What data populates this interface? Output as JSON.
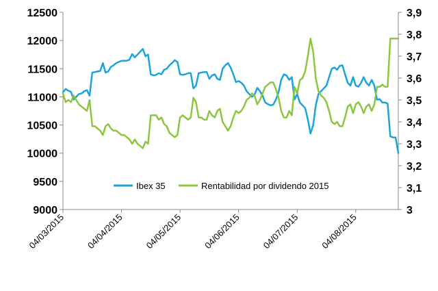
{
  "chart_data": {
    "type": "line",
    "title": "",
    "xlabel": "",
    "y_left": {
      "label": "",
      "min": 9000,
      "max": 12500,
      "step": 500,
      "ticks": [
        "12500",
        "12000",
        "11500",
        "11000",
        "10500",
        "10000",
        "9500",
        "9000"
      ]
    },
    "y_right": {
      "label": "",
      "min": 3.0,
      "max": 3.9,
      "step": 0.1,
      "ticks": [
        "3,9",
        "3,8",
        "3,7",
        "3,6",
        "3,5",
        "3,4",
        "3,3",
        "3,2",
        "3,1",
        "3"
      ]
    },
    "x_ticks": [
      "04/03/2015",
      "04/04/2015",
      "04/05/2015",
      "04/06/2015",
      "04/07/2015",
      "04/08/2015"
    ],
    "x_range_index": [
      0,
      126
    ],
    "x_tick_index": [
      0,
      22,
      44,
      66,
      88,
      110
    ],
    "grid": false,
    "legend": "bottom-center",
    "series": [
      {
        "name": "Ibex 35",
        "axis": "left",
        "color": "#1AA3DC",
        "values": [
          11080,
          11140,
          11110,
          11090,
          10950,
          11000,
          11050,
          11060,
          11100,
          11120,
          11020,
          11430,
          11440,
          11450,
          11460,
          11600,
          11430,
          11450,
          11530,
          11560,
          11600,
          11620,
          11640,
          11640,
          11640,
          11660,
          11760,
          11700,
          11750,
          11800,
          11850,
          11720,
          11750,
          11400,
          11380,
          11390,
          11420,
          11400,
          11480,
          11500,
          11560,
          11600,
          11650,
          11620,
          11400,
          11390,
          11400,
          11420,
          11420,
          11150,
          11200,
          11420,
          11430,
          11440,
          11440,
          11320,
          11380,
          11400,
          11320,
          11300,
          11500,
          11560,
          11600,
          11520,
          11400,
          11260,
          11280,
          11250,
          11200,
          11100,
          11050,
          11000,
          11040,
          11160,
          11100,
          11020,
          10900,
          10870,
          10850,
          10860,
          10950,
          11080,
          11300,
          11400,
          11380,
          11300,
          11350,
          10950,
          11050,
          10900,
          10850,
          10800,
          10600,
          10350,
          10500,
          10850,
          11050,
          11100,
          11150,
          11200,
          11350,
          11500,
          11520,
          11480,
          11550,
          11560,
          11400,
          11250,
          11200,
          11350,
          11200,
          11180,
          11250,
          11350,
          11250,
          11200,
          11300,
          11200,
          10950,
          10960,
          10900,
          10900,
          10880,
          10300,
          10280,
          10280,
          10000
        ]
      },
      {
        "name": "Rentabilidad por dividendo 2015",
        "axis": "right",
        "color": "#8CC63F",
        "values": [
          3.53,
          3.49,
          3.5,
          3.49,
          3.52,
          3.5,
          3.48,
          3.47,
          3.46,
          3.45,
          3.5,
          3.38,
          3.38,
          3.37,
          3.36,
          3.34,
          3.38,
          3.39,
          3.37,
          3.36,
          3.36,
          3.35,
          3.34,
          3.34,
          3.33,
          3.32,
          3.3,
          3.32,
          3.3,
          3.29,
          3.28,
          3.31,
          3.3,
          3.43,
          3.43,
          3.43,
          3.41,
          3.42,
          3.39,
          3.38,
          3.35,
          3.34,
          3.33,
          3.34,
          3.42,
          3.43,
          3.42,
          3.41,
          3.42,
          3.51,
          3.49,
          3.42,
          3.42,
          3.41,
          3.41,
          3.45,
          3.43,
          3.42,
          3.45,
          3.46,
          3.4,
          3.38,
          3.36,
          3.38,
          3.42,
          3.45,
          3.44,
          3.45,
          3.47,
          3.5,
          3.51,
          3.53,
          3.52,
          3.48,
          3.5,
          3.53,
          3.56,
          3.57,
          3.58,
          3.58,
          3.55,
          3.51,
          3.45,
          3.42,
          3.42,
          3.45,
          3.43,
          3.56,
          3.53,
          3.59,
          3.6,
          3.63,
          3.7,
          3.78,
          3.72,
          3.6,
          3.54,
          3.52,
          3.51,
          3.49,
          3.45,
          3.4,
          3.39,
          3.4,
          3.38,
          3.38,
          3.42,
          3.47,
          3.48,
          3.44,
          3.48,
          3.49,
          3.47,
          3.44,
          3.47,
          3.48,
          3.45,
          3.48,
          3.56,
          3.56,
          3.57,
          3.56,
          3.56,
          3.78,
          3.78,
          3.78,
          3.78
        ]
      }
    ]
  }
}
